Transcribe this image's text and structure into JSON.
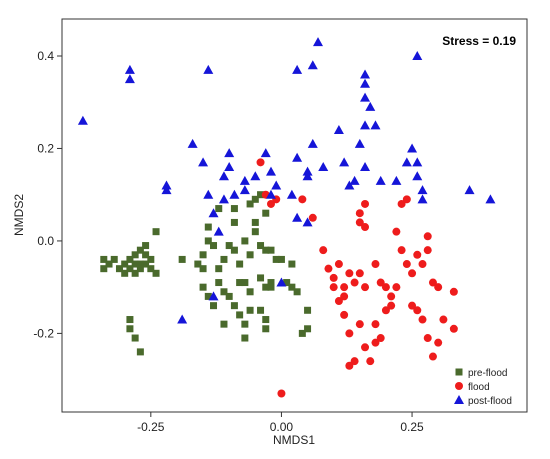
{
  "chart_data": {
    "type": "scatter",
    "title": "",
    "xlabel": "NMDS1",
    "ylabel": "NMDS2",
    "xlim": [
      -0.42,
      0.47
    ],
    "ylim": [
      -0.37,
      0.48
    ],
    "xticks": [
      -0.25,
      0.0,
      0.25
    ],
    "xtick_labels": [
      "-0.25",
      "0.00",
      "0.25"
    ],
    "yticks": [
      -0.2,
      0.0,
      0.2,
      0.4
    ],
    "ytick_labels": [
      "-0.2",
      "0.0",
      "0.2",
      "0.4"
    ],
    "grid": false,
    "legend_position": "bottom-right",
    "annotation": "Stress = 0.19",
    "series": [
      {
        "name": "pre-flood",
        "marker": "square",
        "color": "#4a6a2c",
        "points": [
          [
            -0.32,
            -0.04
          ],
          [
            -0.34,
            -0.04
          ],
          [
            -0.33,
            -0.05
          ],
          [
            -0.31,
            -0.06
          ],
          [
            -0.3,
            -0.05
          ],
          [
            -0.3,
            -0.07
          ],
          [
            -0.29,
            -0.04
          ],
          [
            -0.28,
            -0.05
          ],
          [
            -0.28,
            -0.03
          ],
          [
            -0.27,
            -0.05
          ],
          [
            -0.27,
            -0.06
          ],
          [
            -0.29,
            -0.06
          ],
          [
            -0.28,
            -0.07
          ],
          [
            -0.26,
            -0.05
          ],
          [
            -0.26,
            -0.03
          ],
          [
            -0.25,
            -0.06
          ],
          [
            -0.27,
            -0.02
          ],
          [
            -0.26,
            -0.01
          ],
          [
            -0.25,
            -0.04
          ],
          [
            -0.24,
            -0.07
          ],
          [
            -0.34,
            -0.06
          ],
          [
            -0.29,
            -0.19
          ],
          [
            -0.28,
            -0.21
          ],
          [
            -0.27,
            -0.24
          ],
          [
            -0.29,
            -0.17
          ],
          [
            -0.24,
            0.02
          ],
          [
            -0.19,
            -0.04
          ],
          [
            -0.16,
            -0.05
          ],
          [
            -0.15,
            -0.06
          ],
          [
            -0.15,
            -0.03
          ],
          [
            -0.14,
            0.0
          ],
          [
            -0.14,
            0.03
          ],
          [
            -0.13,
            -0.01
          ],
          [
            -0.12,
            -0.06
          ],
          [
            -0.11,
            -0.04
          ],
          [
            -0.1,
            -0.01
          ],
          [
            -0.09,
            0.07
          ],
          [
            -0.09,
            0.04
          ],
          [
            -0.09,
            -0.02
          ],
          [
            -0.08,
            -0.05
          ],
          [
            -0.07,
            0.0
          ],
          [
            -0.06,
            -0.03
          ],
          [
            -0.05,
            0.04
          ],
          [
            -0.05,
            0.02
          ],
          [
            -0.05,
            0.09
          ],
          [
            -0.04,
            -0.08
          ],
          [
            -0.04,
            -0.01
          ],
          [
            -0.03,
            0.06
          ],
          [
            -0.03,
            -0.02
          ],
          [
            -0.02,
            -0.02
          ],
          [
            -0.01,
            -0.04
          ],
          [
            -0.02,
            -0.1
          ],
          [
            -0.15,
            -0.1
          ],
          [
            -0.14,
            -0.12
          ],
          [
            -0.13,
            -0.14
          ],
          [
            -0.12,
            -0.09
          ],
          [
            -0.11,
            -0.11
          ],
          [
            -0.1,
            -0.12
          ],
          [
            -0.09,
            -0.14
          ],
          [
            -0.08,
            -0.09
          ],
          [
            -0.08,
            -0.16
          ],
          [
            -0.07,
            -0.09
          ],
          [
            -0.06,
            -0.11
          ],
          [
            -0.06,
            -0.15
          ],
          [
            -0.04,
            -0.15
          ],
          [
            -0.03,
            -0.17
          ],
          [
            -0.03,
            -0.1
          ],
          [
            -0.02,
            -0.09
          ],
          [
            -0.11,
            -0.18
          ],
          [
            -0.07,
            -0.21
          ],
          [
            -0.07,
            -0.18
          ],
          [
            -0.03,
            -0.19
          ],
          [
            0.0,
            -0.04
          ],
          [
            0.02,
            -0.05
          ],
          [
            0.01,
            -0.09
          ],
          [
            0.02,
            -0.1
          ],
          [
            0.03,
            -0.11
          ],
          [
            0.04,
            -0.2
          ],
          [
            0.05,
            -0.19
          ],
          [
            0.05,
            -0.15
          ],
          [
            -0.12,
            0.07
          ],
          [
            -0.04,
            0.1
          ],
          [
            -0.06,
            0.08
          ]
        ]
      },
      {
        "name": "flood",
        "marker": "circle",
        "color": "#ee1c1c",
        "points": [
          [
            -0.04,
            0.17
          ],
          [
            -0.03,
            0.1
          ],
          [
            -0.02,
            0.08
          ],
          [
            -0.01,
            0.09
          ],
          [
            0.04,
            0.09
          ],
          [
            0.06,
            0.05
          ],
          [
            0.08,
            -0.02
          ],
          [
            0.09,
            -0.06
          ],
          [
            0.1,
            -0.08
          ],
          [
            0.11,
            -0.05
          ],
          [
            0.1,
            -0.1
          ],
          [
            0.11,
            -0.13
          ],
          [
            0.12,
            -0.12
          ],
          [
            0.12,
            -0.1
          ],
          [
            0.13,
            -0.07
          ],
          [
            0.14,
            -0.09
          ],
          [
            0.15,
            -0.07
          ],
          [
            0.16,
            -0.1
          ],
          [
            0.15,
            0.04
          ],
          [
            0.16,
            0.03
          ],
          [
            0.16,
            0.08
          ],
          [
            0.15,
            0.06
          ],
          [
            0.18,
            -0.05
          ],
          [
            0.19,
            -0.09
          ],
          [
            0.2,
            -0.1
          ],
          [
            0.21,
            -0.12
          ],
          [
            0.21,
            -0.14
          ],
          [
            0.22,
            -0.1
          ],
          [
            0.23,
            0.08
          ],
          [
            0.24,
            0.09
          ],
          [
            0.22,
            0.02
          ],
          [
            0.23,
            -0.02
          ],
          [
            0.24,
            -0.05
          ],
          [
            0.25,
            -0.07
          ],
          [
            0.26,
            -0.03
          ],
          [
            0.27,
            -0.05
          ],
          [
            0.28,
            0.01
          ],
          [
            0.28,
            -0.02
          ],
          [
            0.29,
            -0.09
          ],
          [
            0.3,
            -0.1
          ],
          [
            0.25,
            -0.14
          ],
          [
            0.26,
            -0.15
          ],
          [
            0.27,
            -0.17
          ],
          [
            0.28,
            -0.21
          ],
          [
            0.29,
            -0.25
          ],
          [
            0.3,
            -0.22
          ],
          [
            0.31,
            -0.17
          ],
          [
            0.33,
            -0.11
          ],
          [
            0.33,
            -0.19
          ],
          [
            0.18,
            -0.18
          ],
          [
            0.18,
            -0.22
          ],
          [
            0.17,
            -0.26
          ],
          [
            0.16,
            -0.23
          ],
          [
            0.14,
            -0.26
          ],
          [
            0.13,
            -0.27
          ],
          [
            0.13,
            -0.2
          ],
          [
            0.15,
            -0.18
          ],
          [
            0.19,
            -0.21
          ],
          [
            0.2,
            -0.15
          ],
          [
            0.12,
            -0.16
          ],
          [
            0.0,
            -0.33
          ]
        ]
      },
      {
        "name": "post-flood",
        "marker": "triangle",
        "color": "#1515d8",
        "points": [
          [
            -0.38,
            0.26
          ],
          [
            -0.29,
            0.37
          ],
          [
            -0.29,
            0.35
          ],
          [
            -0.14,
            0.37
          ],
          [
            0.03,
            0.37
          ],
          [
            0.06,
            0.38
          ],
          [
            0.07,
            0.43
          ],
          [
            0.26,
            0.4
          ],
          [
            0.16,
            0.36
          ],
          [
            0.16,
            0.34
          ],
          [
            0.16,
            0.31
          ],
          [
            0.17,
            0.29
          ],
          [
            0.18,
            0.25
          ],
          [
            0.16,
            0.25
          ],
          [
            0.15,
            0.21
          ],
          [
            0.16,
            0.16
          ],
          [
            0.14,
            0.13
          ],
          [
            0.13,
            0.12
          ],
          [
            0.11,
            0.24
          ],
          [
            0.12,
            0.17
          ],
          [
            0.08,
            0.16
          ],
          [
            0.05,
            0.15
          ],
          [
            0.03,
            0.18
          ],
          [
            0.06,
            0.21
          ],
          [
            0.05,
            0.14
          ],
          [
            -0.03,
            0.19
          ],
          [
            -0.1,
            0.19
          ],
          [
            -0.1,
            0.16
          ],
          [
            -0.11,
            0.14
          ],
          [
            -0.15,
            0.17
          ],
          [
            -0.17,
            0.21
          ],
          [
            -0.22,
            0.12
          ],
          [
            -0.22,
            0.11
          ],
          [
            -0.11,
            0.09
          ],
          [
            -0.07,
            0.11
          ],
          [
            -0.07,
            0.13
          ],
          [
            -0.05,
            0.14
          ],
          [
            -0.02,
            0.15
          ],
          [
            -0.01,
            0.12
          ],
          [
            -0.02,
            0.1
          ],
          [
            0.02,
            0.1
          ],
          [
            0.03,
            0.05
          ],
          [
            0.05,
            0.04
          ],
          [
            0.26,
            0.14
          ],
          [
            0.27,
            0.11
          ],
          [
            0.27,
            0.09
          ],
          [
            0.22,
            0.13
          ],
          [
            0.19,
            0.13
          ],
          [
            0.24,
            0.17
          ],
          [
            0.25,
            0.2
          ],
          [
            0.26,
            0.17
          ],
          [
            0.36,
            0.11
          ],
          [
            0.4,
            0.09
          ],
          [
            -0.19,
            -0.17
          ],
          [
            -0.13,
            -0.12
          ],
          [
            0.0,
            -0.09
          ],
          [
            -0.13,
            0.06
          ],
          [
            -0.12,
            0.02
          ],
          [
            -0.14,
            0.1
          ],
          [
            -0.09,
            0.1
          ]
        ]
      }
    ]
  }
}
